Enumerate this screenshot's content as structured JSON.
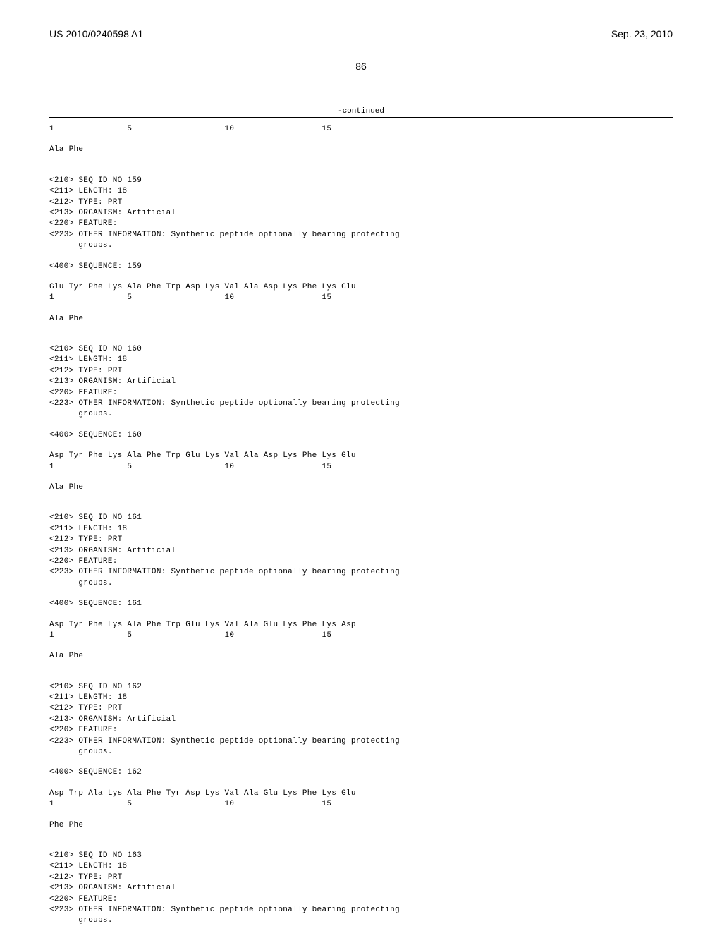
{
  "header": {
    "docNumber": "US 2010/0240598 A1",
    "date": "Sep. 23, 2010"
  },
  "pageNumber": "86",
  "continuedLabel": "-continued",
  "firstLine": "1               5                   10                  15",
  "firstResidue": "Ala Phe",
  "sequences": [
    {
      "header": {
        "seqId": "<210> SEQ ID NO 159",
        "length": "<211> LENGTH: 18",
        "type": "<212> TYPE: PRT",
        "organism": "<213> ORGANISM: Artificial",
        "feature": "<220> FEATURE:",
        "otherInfo": "<223> OTHER INFORMATION: Synthetic peptide optionally bearing protecting",
        "otherInfoCont": "      groups."
      },
      "sequenceTag": "<400> SEQUENCE: 159",
      "residues": "Glu Tyr Phe Lys Ala Phe Trp Asp Lys Val Ala Asp Lys Phe Lys Glu",
      "positions": "1               5                   10                  15",
      "tail": "Ala Phe"
    },
    {
      "header": {
        "seqId": "<210> SEQ ID NO 160",
        "length": "<211> LENGTH: 18",
        "type": "<212> TYPE: PRT",
        "organism": "<213> ORGANISM: Artificial",
        "feature": "<220> FEATURE:",
        "otherInfo": "<223> OTHER INFORMATION: Synthetic peptide optionally bearing protecting",
        "otherInfoCont": "      groups."
      },
      "sequenceTag": "<400> SEQUENCE: 160",
      "residues": "Asp Tyr Phe Lys Ala Phe Trp Glu Lys Val Ala Asp Lys Phe Lys Glu",
      "positions": "1               5                   10                  15",
      "tail": "Ala Phe"
    },
    {
      "header": {
        "seqId": "<210> SEQ ID NO 161",
        "length": "<211> LENGTH: 18",
        "type": "<212> TYPE: PRT",
        "organism": "<213> ORGANISM: Artificial",
        "feature": "<220> FEATURE:",
        "otherInfo": "<223> OTHER INFORMATION: Synthetic peptide optionally bearing protecting",
        "otherInfoCont": "      groups."
      },
      "sequenceTag": "<400> SEQUENCE: 161",
      "residues": "Asp Tyr Phe Lys Ala Phe Trp Glu Lys Val Ala Glu Lys Phe Lys Asp",
      "positions": "1               5                   10                  15",
      "tail": "Ala Phe"
    },
    {
      "header": {
        "seqId": "<210> SEQ ID NO 162",
        "length": "<211> LENGTH: 18",
        "type": "<212> TYPE: PRT",
        "organism": "<213> ORGANISM: Artificial",
        "feature": "<220> FEATURE:",
        "otherInfo": "<223> OTHER INFORMATION: Synthetic peptide optionally bearing protecting",
        "otherInfoCont": "      groups."
      },
      "sequenceTag": "<400> SEQUENCE: 162",
      "residues": "Asp Trp Ala Lys Ala Phe Tyr Asp Lys Val Ala Glu Lys Phe Lys Glu",
      "positions": "1               5                   10                  15",
      "tail": "Phe Phe"
    },
    {
      "header": {
        "seqId": "<210> SEQ ID NO 163",
        "length": "<211> LENGTH: 18",
        "type": "<212> TYPE: PRT",
        "organism": "<213> ORGANISM: Artificial",
        "feature": "<220> FEATURE:",
        "otherInfo": "<223> OTHER INFORMATION: Synthetic peptide optionally bearing protecting",
        "otherInfoCont": "      groups."
      },
      "sequenceTag": "",
      "residues": "",
      "positions": "",
      "tail": ""
    }
  ]
}
